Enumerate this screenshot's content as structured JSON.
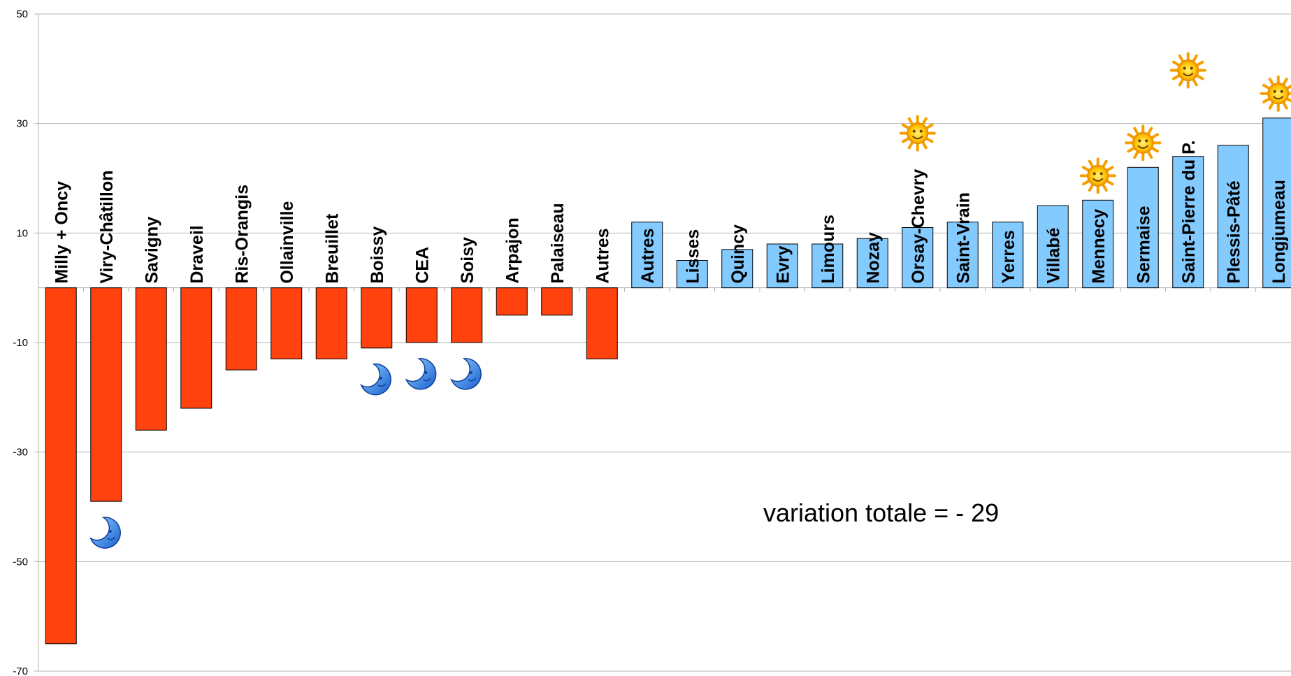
{
  "chart_data": {
    "type": "bar",
    "title": "",
    "xlabel": "",
    "ylabel": "",
    "ylim": [
      -70,
      50
    ],
    "yticks": [
      50,
      30,
      10,
      -10,
      -30,
      -50,
      -70
    ],
    "grid": true,
    "categories": [
      "Milly + Oncy",
      "Viry-Châtillon",
      "Savigny",
      "Draveil",
      "Ris-Orangis",
      "Ollainville",
      "Breuillet",
      "Boissy",
      "CEA",
      "Soisy",
      "Arpajon",
      "Palaiseau",
      "Autres",
      "Autres",
      "Lisses",
      "Quincy",
      "Evry",
      "Limours",
      "Nozay",
      "Orsay-Chevry",
      "Saint-Vrain",
      "Yerres",
      "Villabé",
      "Mennecy",
      "Sermaise",
      "Saint-Pierre du P.",
      "Plessis-Pâté",
      "Longjumeau"
    ],
    "values": [
      -65,
      -39,
      -26,
      -22,
      -15,
      -13,
      -13,
      -11,
      -10,
      -10,
      -5,
      -5,
      -13,
      12,
      5,
      7,
      8,
      8,
      9,
      11,
      12,
      12,
      15,
      16,
      22,
      24,
      26,
      31
    ],
    "colors": {
      "negative": "#ff420e",
      "positive": "#83caff",
      "grid": "#b3b3b3",
      "axis": "#b3b3b3"
    },
    "markers": [
      {
        "category_index": 1,
        "icon": "moon-icon"
      },
      {
        "category_index": 7,
        "icon": "moon-icon"
      },
      {
        "category_index": 8,
        "icon": "moon-icon"
      },
      {
        "category_index": 9,
        "icon": "moon-icon"
      },
      {
        "category_index": 19,
        "icon": "sun-icon"
      },
      {
        "category_index": 23,
        "icon": "sun-icon"
      },
      {
        "category_index": 24,
        "icon": "sun-icon"
      },
      {
        "category_index": 25,
        "icon": "sun-icon"
      },
      {
        "category_index": 27,
        "icon": "sun-icon"
      }
    ],
    "annotation": "variation totale = - 29"
  }
}
